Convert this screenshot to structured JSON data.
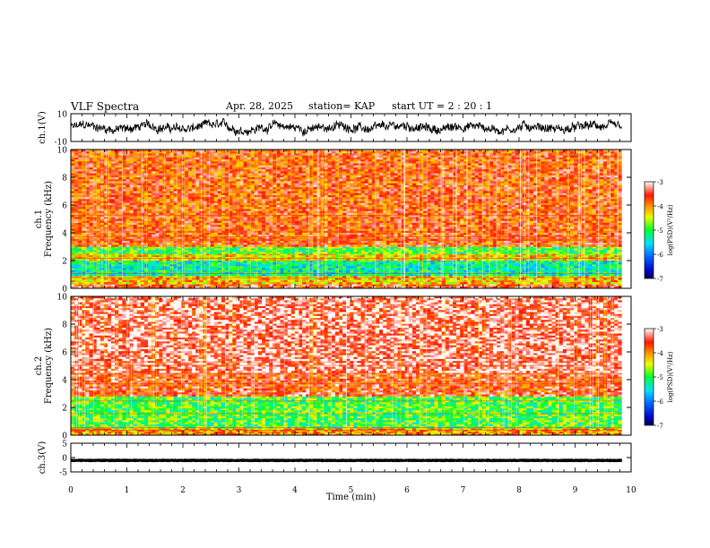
{
  "header": {
    "title": "VLF Spectra",
    "date": "Apr. 28, 2025",
    "station": "station= KAP",
    "start": "start  UT  =   2  : 20 : 1"
  },
  "chart_data": [
    {
      "type": "line",
      "panel": "ch1-waveform",
      "ylabel": "ch.1(V)",
      "ylim": [
        -10,
        10
      ],
      "yticks": [
        "10",
        "-10"
      ],
      "x_range": [
        0,
        9.83
      ],
      "level": 0,
      "amplitude": 4.5
    },
    {
      "type": "heatmap",
      "panel": "ch1-spectrogram",
      "ylabel_channel": "ch.1",
      "ylabel": "Frequency (kHz)",
      "ylim": [
        0,
        10
      ],
      "yticks": [
        "0",
        "2",
        "4",
        "6",
        "8",
        "10"
      ],
      "x_range": [
        0,
        9.83
      ],
      "bands": [
        {
          "from": 0,
          "to": 0.3,
          "value": -3.6
        },
        {
          "from": 0.3,
          "to": 0.9,
          "value": -4.2
        },
        {
          "from": 0.9,
          "to": 2.0,
          "value": -5.3
        },
        {
          "from": 2.0,
          "to": 2.5,
          "value": -4.3
        },
        {
          "from": 2.5,
          "to": 3.0,
          "value": -4.9
        },
        {
          "from": 3.0,
          "to": 10,
          "value": -3.7
        }
      ],
      "colorbar": {
        "label": "log(PSD)(V²/Hz)",
        "range": [
          -7,
          -3
        ],
        "ticks": [
          "-3",
          "-4",
          "-5",
          "-6",
          "-7"
        ]
      }
    },
    {
      "type": "heatmap",
      "panel": "ch2-spectrogram",
      "ylabel_channel": "ch.2",
      "ylabel": "Frequency (kHz)",
      "ylim": [
        0,
        10
      ],
      "yticks": [
        "0",
        "2",
        "4",
        "6",
        "8",
        "10"
      ],
      "x_range": [
        0,
        9.83
      ],
      "bands": [
        {
          "from": 0,
          "to": 0.5,
          "value": -4.0
        },
        {
          "from": 0.5,
          "to": 2.8,
          "value": -4.9
        },
        {
          "from": 2.8,
          "to": 4.5,
          "value": -3.6
        },
        {
          "from": 4.5,
          "to": 10,
          "value": -3.3
        }
      ],
      "colorbar": {
        "label": "log(PSD)(V²/Hz)",
        "range": [
          -7,
          -3
        ],
        "ticks": [
          "-3",
          "-4",
          "-5",
          "-6",
          "-7"
        ]
      }
    },
    {
      "type": "line",
      "panel": "ch3-waveform",
      "ylabel": "ch.3(V)",
      "ylim": [
        -5,
        5
      ],
      "yticks": [
        "5",
        "0",
        "-5"
      ],
      "x_range": [
        0,
        9.83
      ],
      "level": -1,
      "amplitude": 0.6,
      "xlabel": "Time  (min)",
      "xlim": [
        0,
        10
      ],
      "xticks": [
        "0",
        "1",
        "2",
        "3",
        "4",
        "5",
        "6",
        "7",
        "8",
        "9",
        "10"
      ]
    }
  ],
  "colors": {
    "axis": "#000000",
    "trace": "#000000",
    "background": "#ffffff"
  }
}
